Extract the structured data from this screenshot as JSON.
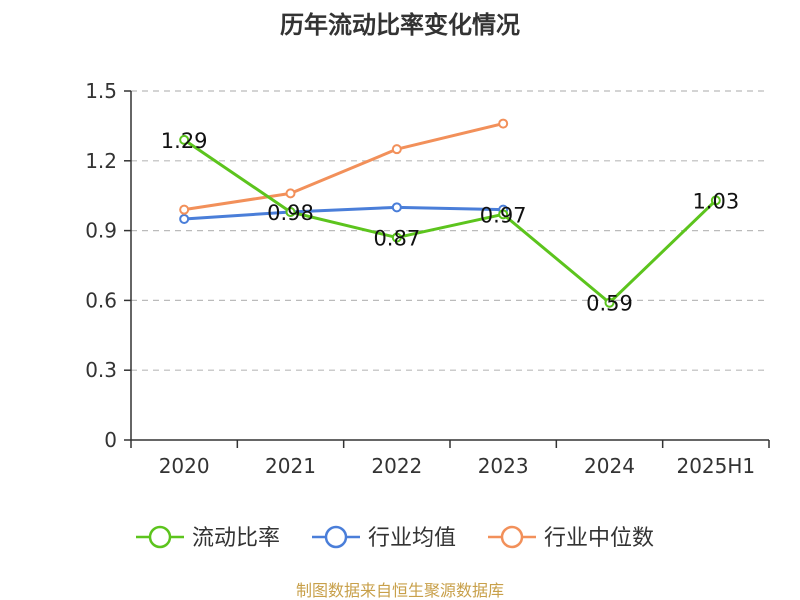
{
  "chart_data": {
    "type": "line",
    "title": "历年流动比率变化情况",
    "categories": [
      "2020",
      "2021",
      "2022",
      "2023",
      "2024",
      "2025H1"
    ],
    "y_ticks": [
      "0",
      "0.3",
      "0.6",
      "0.9",
      "1.2",
      "1.5"
    ],
    "ylim": [
      0,
      1.5
    ],
    "grid": true,
    "legend_position": "bottom",
    "series": [
      {
        "name": "流动比率",
        "color": "#5cc41d",
        "values": [
          1.29,
          0.98,
          0.87,
          0.97,
          0.59,
          1.03
        ],
        "data_labels": [
          "1.29",
          "0.98",
          "0.87",
          "0.97",
          "0.59",
          "1.03"
        ]
      },
      {
        "name": "行业均值",
        "color": "#4a7ed9",
        "values": [
          0.95,
          0.98,
          1.0,
          0.99,
          null,
          null
        ]
      },
      {
        "name": "行业中位数",
        "color": "#f2905a",
        "values": [
          0.99,
          1.06,
          1.25,
          1.36,
          null,
          null
        ]
      }
    ]
  },
  "footer": {
    "source": "制图数据来自恒生聚源数据库"
  }
}
